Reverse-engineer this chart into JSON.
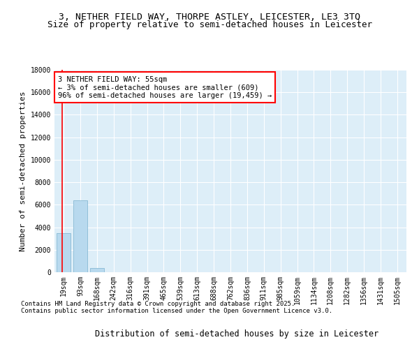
{
  "title_line1": "3, NETHER FIELD WAY, THORPE ASTLEY, LEICESTER, LE3 3TQ",
  "title_line2": "Size of property relative to semi-detached houses in Leicester",
  "xlabel": "Distribution of semi-detached houses by size in Leicester",
  "ylabel": "Number of semi-detached properties",
  "categories": [
    "19sqm",
    "93sqm",
    "168sqm",
    "242sqm",
    "316sqm",
    "391sqm",
    "465sqm",
    "539sqm",
    "613sqm",
    "688sqm",
    "762sqm",
    "836sqm",
    "911sqm",
    "985sqm",
    "1059sqm",
    "1134sqm",
    "1208sqm",
    "1282sqm",
    "1356sqm",
    "1431sqm",
    "1505sqm"
  ],
  "values": [
    3450,
    6400,
    380,
    0,
    0,
    0,
    0,
    0,
    0,
    0,
    0,
    0,
    0,
    0,
    0,
    0,
    0,
    0,
    0,
    0,
    0
  ],
  "bar_color": "#b8d9ee",
  "bar_edge_color": "#7ab0ce",
  "vline_color": "#ff0000",
  "annotation_text": "3 NETHER FIELD WAY: 55sqm\n← 3% of semi-detached houses are smaller (609)\n96% of semi-detached houses are larger (19,459) →",
  "annotation_box_facecolor": "#ffffff",
  "annotation_box_edgecolor": "#ff0000",
  "ylim": [
    0,
    18000
  ],
  "yticks": [
    0,
    2000,
    4000,
    6000,
    8000,
    10000,
    12000,
    14000,
    16000,
    18000
  ],
  "background_color": "#ddeef8",
  "grid_color": "#ffffff",
  "footer_text": "Contains HM Land Registry data © Crown copyright and database right 2025.\nContains public sector information licensed under the Open Government Licence v3.0.",
  "title_fontsize": 9.5,
  "subtitle_fontsize": 9,
  "ylabel_fontsize": 8,
  "xlabel_fontsize": 8.5,
  "tick_fontsize": 7,
  "annotation_fontsize": 7.5,
  "footer_fontsize": 6.5
}
